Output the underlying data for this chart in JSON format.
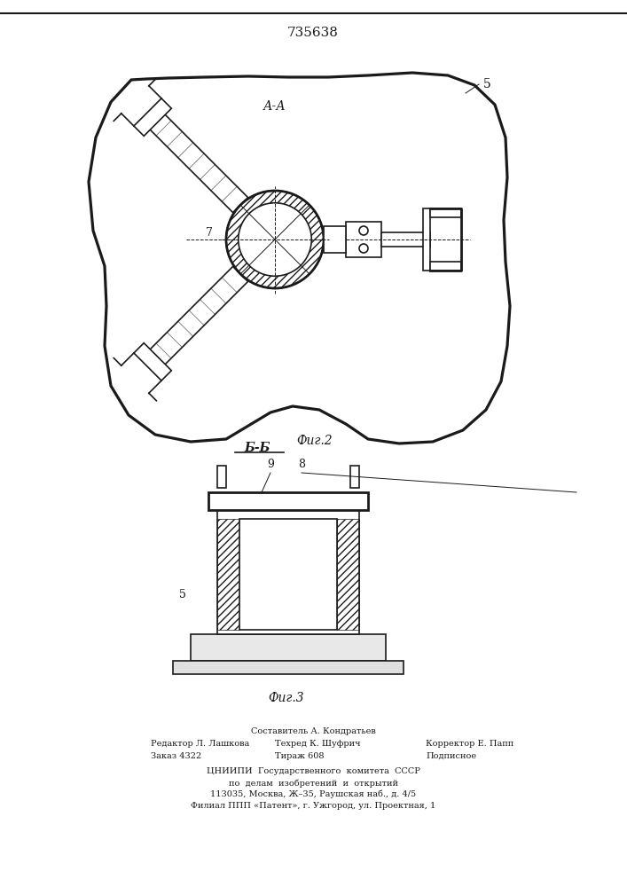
{
  "title": "735638",
  "fig2_label": "Фиг.2",
  "fig3_label": "Фиг.3",
  "section_aa": "А-А",
  "section_bb": "Б-Б",
  "label_5_fig2": "5",
  "label_7_fig2": "7",
  "label_5_fig3": "5",
  "label_8_fig3": "8",
  "label_9_fig3": "9",
  "bg_color": "#f5f5f0",
  "line_color": "#1a1a1a",
  "hatch_color": "#1a1a1a",
  "footer_line1": "Редактор Л. Лашкова          Составитель А. Кондратьев",
  "footer_line2": "Заказ 4322            Техред К. Шуфрич        Корректор Е. Папп",
  "footer_line3": "                          Тираж 608                    Подписное",
  "footer_line4": "ЦНИИПИ  Государственного  комитета  СССР",
  "footer_line5": "по  делам  изобретений  и  открытий",
  "footer_line6": "113035, Москва, Ж–35, Раушская наб., д. 4/5",
  "footer_line7": "Филиал ППП «Патент», г. Ужгород, ул. Проектная, 1"
}
